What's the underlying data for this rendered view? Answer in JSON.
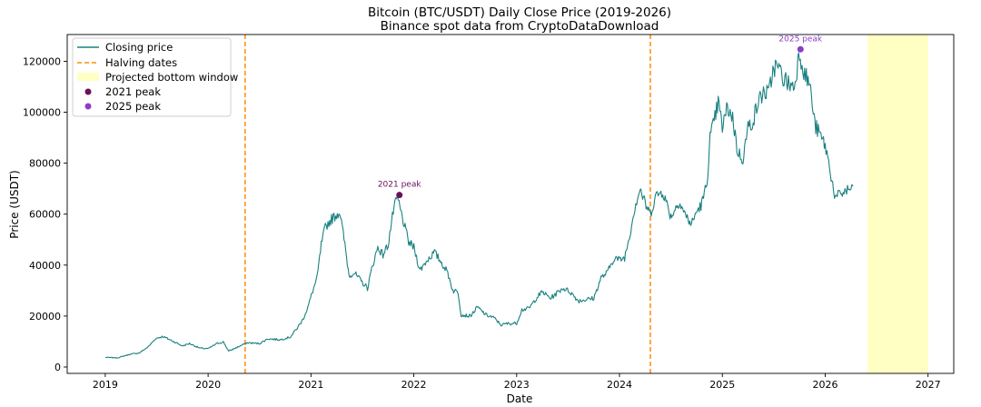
{
  "chart_data": {
    "type": "line",
    "title": "Bitcoin (BTC/USDT) Daily Close Price (2019-2026)",
    "subtitle": "Binance spot data from CryptoDataDownload",
    "xlabel": "Date",
    "ylabel": "Price (USDT)",
    "xlim": [
      2018.63,
      2027.25
    ],
    "ylim": [
      -2500,
      130500
    ],
    "x_ticks": [
      2019,
      2020,
      2021,
      2022,
      2023,
      2024,
      2025,
      2026,
      2027
    ],
    "x_tick_labels": [
      "2019",
      "2020",
      "2021",
      "2022",
      "2023",
      "2024",
      "2025",
      "2026",
      "2027"
    ],
    "y_ticks": [
      0,
      20000,
      40000,
      60000,
      80000,
      100000,
      120000
    ],
    "y_tick_labels": [
      "0",
      "20000",
      "40000",
      "60000",
      "80000",
      "100000",
      "120000"
    ],
    "grid": false,
    "legend_position": "top-left",
    "legend": {
      "closing_price": "Closing price",
      "halving_dates": "Halving dates",
      "projected_window": "Projected bottom window",
      "peak_2021": "2021 peak",
      "peak_2025": "2025 peak"
    },
    "series": [
      {
        "name": "Closing price",
        "color": "#1a8080",
        "x": [
          2019.0,
          2019.12,
          2019.25,
          2019.33,
          2019.42,
          2019.49,
          2019.56,
          2019.65,
          2019.75,
          2019.82,
          2019.92,
          2020.0,
          2020.09,
          2020.15,
          2020.2,
          2020.28,
          2020.38,
          2020.5,
          2020.58,
          2020.7,
          2020.8,
          2020.87,
          2020.92,
          2020.97,
          2021.01,
          2021.06,
          2021.1,
          2021.14,
          2021.2,
          2021.28,
          2021.33,
          2021.37,
          2021.42,
          2021.48,
          2021.55,
          2021.6,
          2021.65,
          2021.7,
          2021.75,
          2021.8,
          2021.84,
          2021.88,
          2021.95,
          2022.0,
          2022.06,
          2022.13,
          2022.2,
          2022.27,
          2022.33,
          2022.38,
          2022.43,
          2022.46,
          2022.55,
          2022.62,
          2022.7,
          2022.78,
          2022.85,
          2022.9,
          2023.0,
          2023.05,
          2023.12,
          2023.2,
          2023.25,
          2023.33,
          2023.45,
          2023.52,
          2023.6,
          2023.68,
          2023.75,
          2023.82,
          2023.88,
          2023.95,
          2024.0,
          2024.05,
          2024.1,
          2024.15,
          2024.2,
          2024.25,
          2024.3,
          2024.35,
          2024.42,
          2024.5,
          2024.58,
          2024.65,
          2024.7,
          2024.75,
          2024.8,
          2024.85,
          2024.88,
          2024.92,
          2024.96,
          2025.0,
          2025.05,
          2025.1,
          2025.15,
          2025.2,
          2025.25,
          2025.3,
          2025.35,
          2025.4,
          2025.45,
          2025.5,
          2025.55,
          2025.6,
          2025.65,
          2025.7,
          2025.75,
          2025.8,
          2025.85,
          2025.9,
          2025.95,
          2026.0,
          2026.05,
          2026.08,
          2026.1,
          2026.15,
          2026.2,
          2026.25,
          2026.27
        ],
        "y": [
          3800,
          3600,
          5100,
          5500,
          8000,
          11200,
          12000,
          10300,
          8300,
          9200,
          7400,
          7200,
          9300,
          9800,
          6200,
          7700,
          9500,
          9200,
          11100,
          10700,
          11800,
          15500,
          18500,
          23500,
          29000,
          35000,
          48000,
          55000,
          58000,
          61000,
          48000,
          36000,
          37000,
          34000,
          31000,
          40000,
          47000,
          44000,
          48000,
          61000,
          66500,
          60000,
          49000,
          47000,
          38000,
          42000,
          45000,
          41000,
          37000,
          30000,
          29500,
          20500,
          20000,
          23500,
          20500,
          19300,
          16500,
          17000,
          17200,
          22500,
          23000,
          27500,
          29500,
          27000,
          31000,
          29500,
          26000,
          26500,
          27000,
          35000,
          37000,
          43000,
          42000,
          43000,
          52000,
          63000,
          70000,
          64000,
          60000,
          67000,
          69000,
          59000,
          65000,
          59000,
          56000,
          61000,
          64000,
          72000,
          90000,
          96000,
          104000,
          94000,
          102000,
          98000,
          84000,
          82000,
          94000,
          97000,
          104000,
          108000,
          107000,
          118000,
          117000,
          113000,
          111000,
          110000,
          124000,
          115000,
          111000,
          95000,
          91000,
          87000,
          77000,
          70000,
          66000,
          68000,
          69000,
          70000,
          71000
        ]
      }
    ],
    "halving_dates": [
      2020.36,
      2024.3
    ],
    "projected_bottom_window": [
      2026.41,
      2027.0
    ],
    "annotations": [
      {
        "label": "2021 peak",
        "x": 2021.86,
        "y": 67500,
        "color": "#6b0f5c"
      },
      {
        "label": "2025 peak",
        "x": 2025.76,
        "y": 124700,
        "color": "#8a3ec7"
      }
    ],
    "colors": {
      "line": "#1a8080",
      "halving": "#ff8c00",
      "window": "#ffffc4",
      "peak_2021": "#6b0f5c",
      "peak_2025": "#8a3ec7"
    }
  }
}
